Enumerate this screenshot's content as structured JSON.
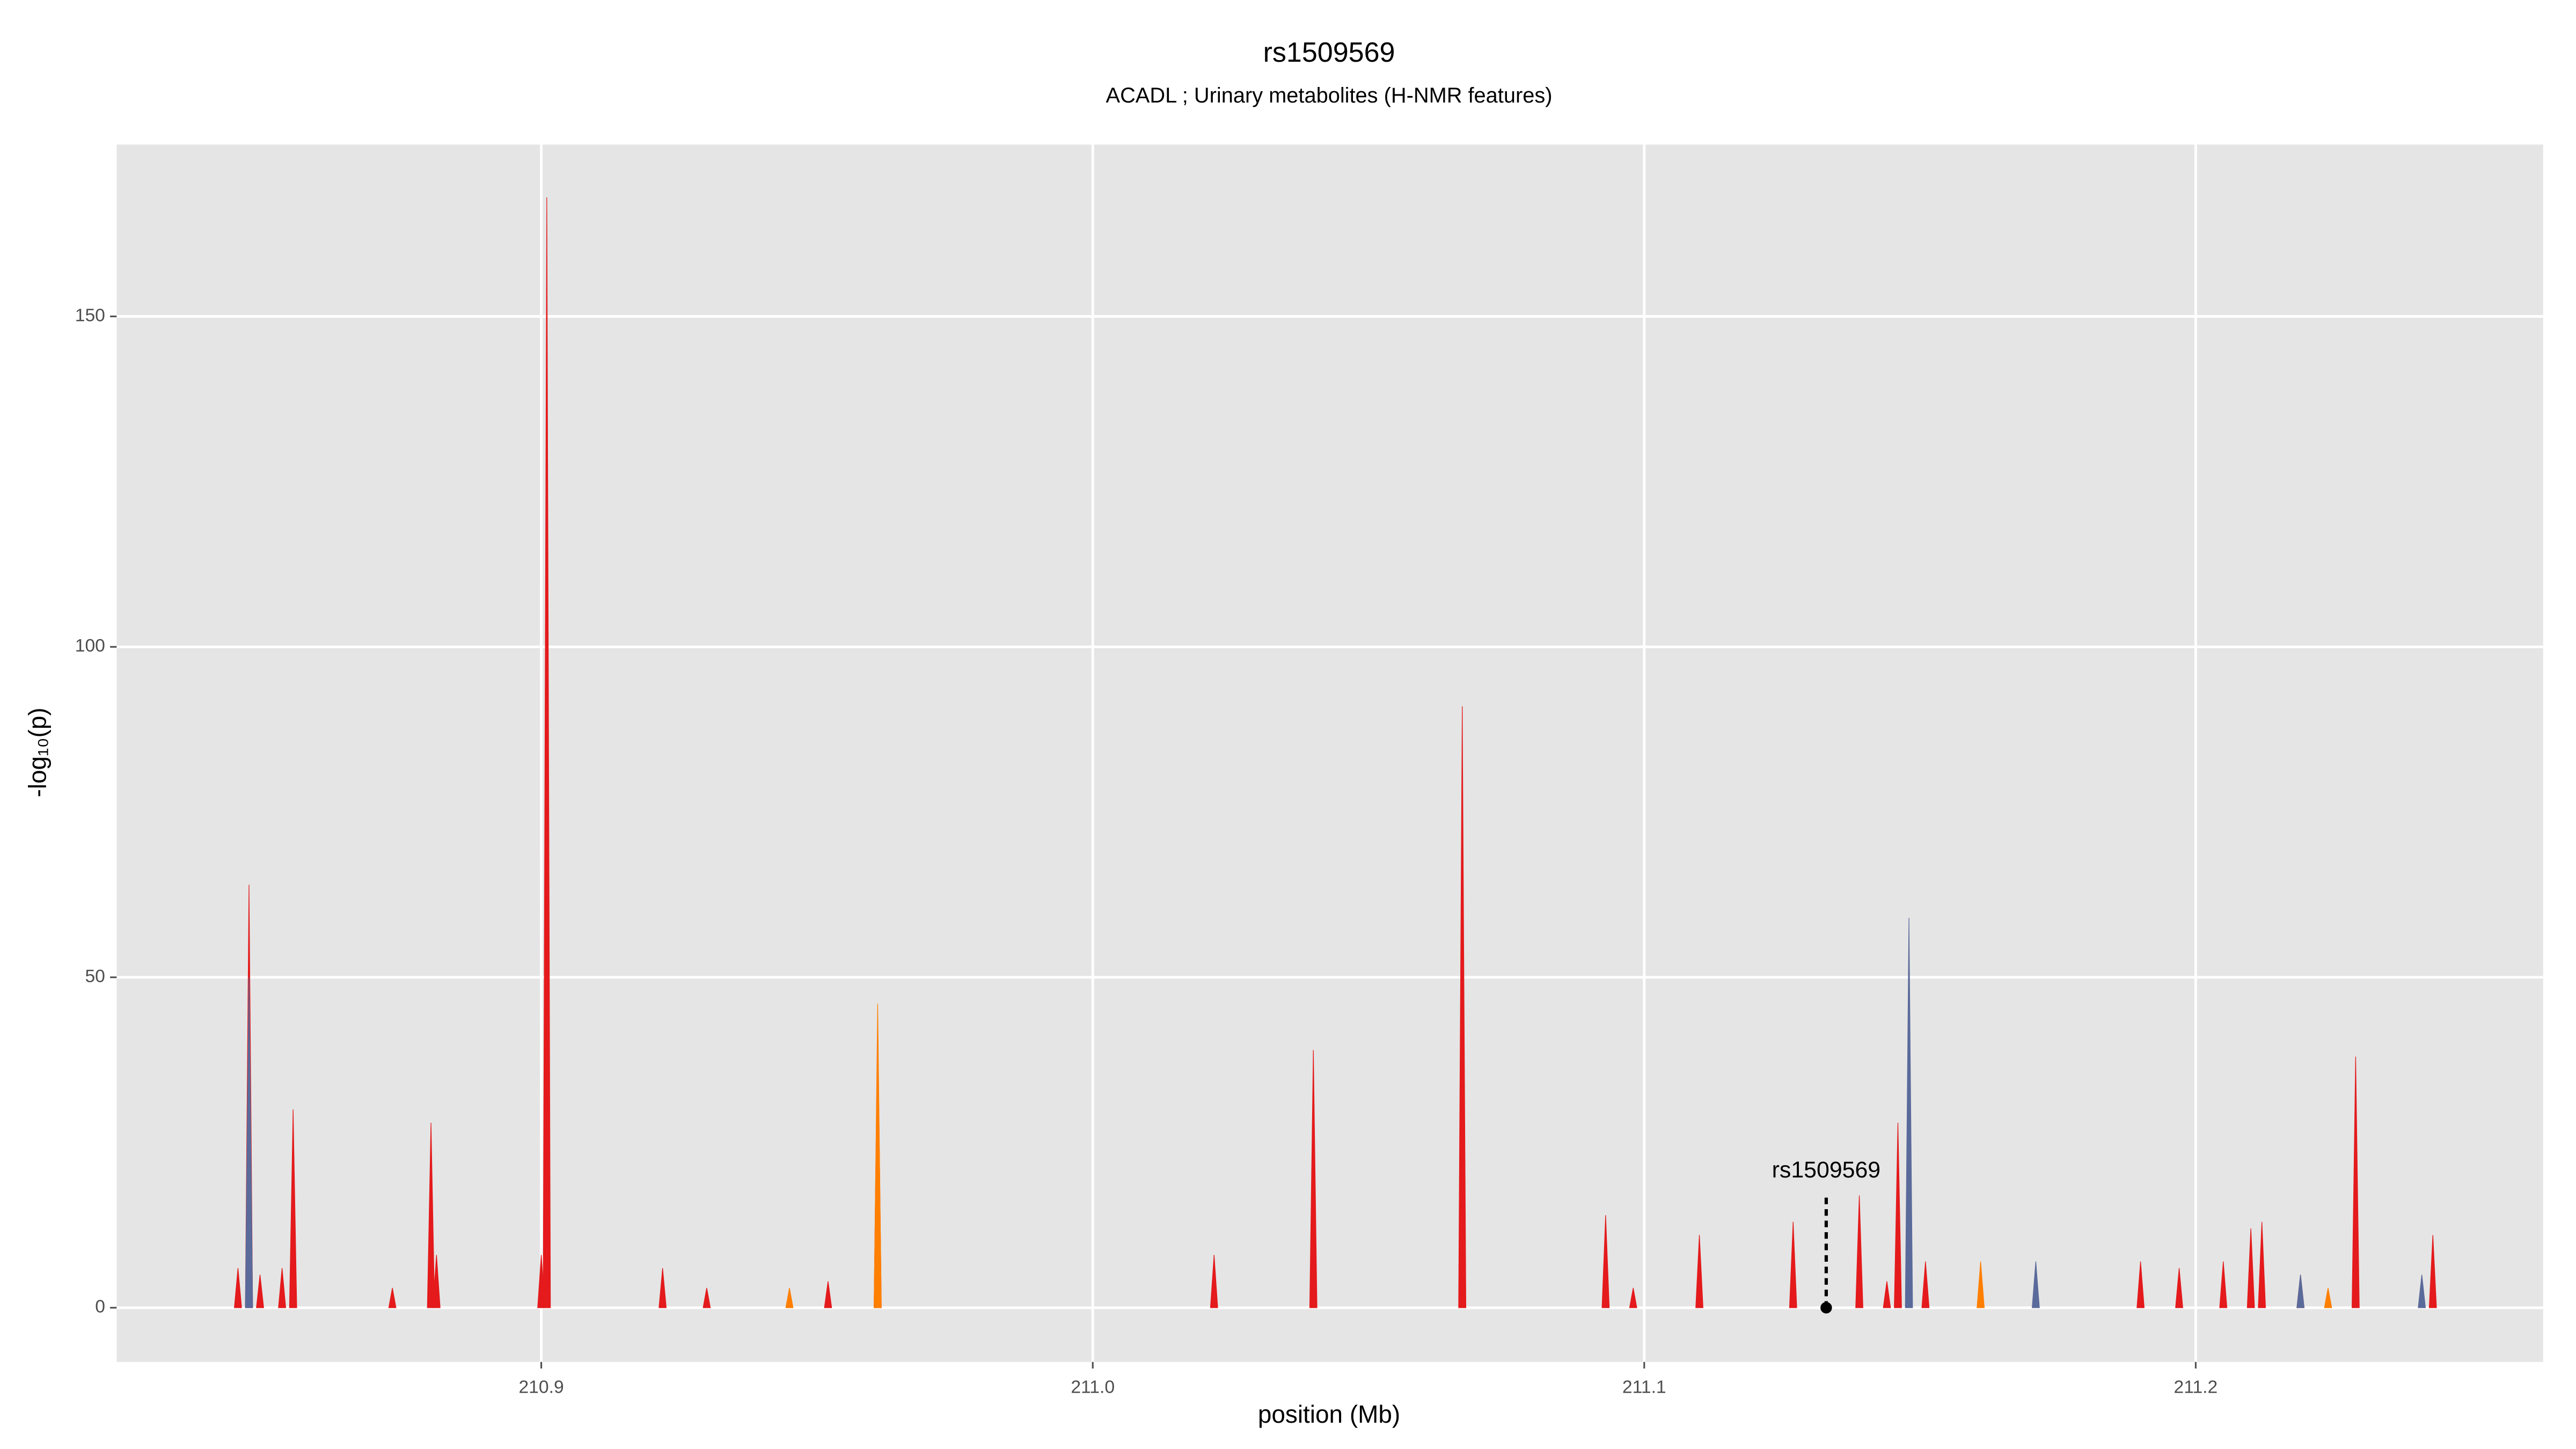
{
  "chart_data": {
    "type": "spike",
    "title": "rs1509569",
    "subtitle": "ACADL ; Urinary metabolites (H-NMR features)",
    "x_label": "position (Mb)",
    "y_label": "-log₁₀(p)",
    "xlim": [
      210.823,
      211.263
    ],
    "ylim": [
      -8.2,
      176
    ],
    "xticks": [
      210.9,
      {
        "value": 211.0,
        "label": "211.0"
      },
      211.1,
      211.2
    ],
    "yticks": [
      0,
      50,
      100,
      150
    ],
    "grid": true,
    "series": [
      {
        "color": "#e41a1c",
        "x": [
          210.845,
          210.847,
          210.849,
          210.853,
          210.855,
          210.873,
          210.88,
          210.881,
          210.9,
          210.901,
          210.922,
          210.93,
          210.952,
          210.961,
          211.022,
          211.04,
          211.067,
          211.093,
          211.098,
          211.11,
          211.127,
          211.139,
          211.144,
          211.146,
          211.151,
          211.19,
          211.197,
          211.205,
          211.21,
          211.212,
          211.219,
          211.229,
          211.243
        ],
        "values": [
          6,
          64,
          5,
          6,
          30,
          3,
          28,
          8,
          8,
          168,
          6,
          3,
          4,
          44,
          8,
          39,
          91,
          14,
          3,
          11,
          13,
          17,
          4,
          28,
          7,
          7,
          6,
          7,
          12,
          13,
          5,
          38,
          11
        ]
      },
      {
        "color": "#ff7f00",
        "x": [
          210.945,
          210.961,
          211.161,
          211.224
        ],
        "values": [
          3,
          46,
          7,
          3
        ]
      },
      {
        "color": "#5a6a9a",
        "x": [
          210.847,
          211.148,
          211.171,
          211.219,
          211.241
        ],
        "values": [
          50,
          59,
          7,
          5,
          5
        ]
      }
    ],
    "annotation": {
      "label": "rs1509569",
      "x": 211.133,
      "y": 0
    }
  }
}
